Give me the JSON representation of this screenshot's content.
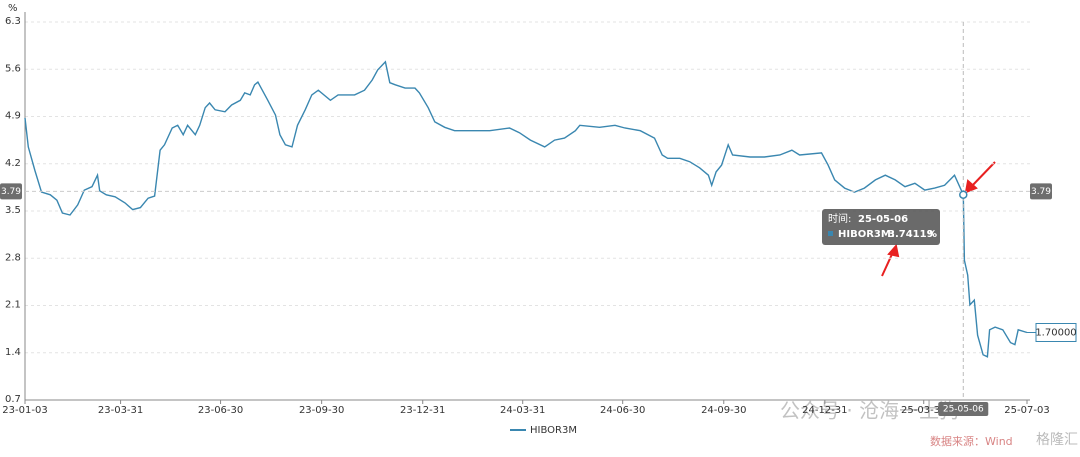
{
  "chart_data": {
    "type": "line",
    "y_unit": "%",
    "x": [
      "23-01-03",
      "23-01-06",
      "23-01-12",
      "23-01-18",
      "23-01-26",
      "23-02-01",
      "23-02-06",
      "23-02-13",
      "23-02-20",
      "23-02-26",
      "23-03-05",
      "23-03-10",
      "23-03-12",
      "23-03-18",
      "23-03-26",
      "23-04-04",
      "23-04-11",
      "23-04-18",
      "23-04-25",
      "23-05-01",
      "23-05-06",
      "23-05-10",
      "23-05-17",
      "23-05-22",
      "23-05-27",
      "23-05-31",
      "23-06-07",
      "23-06-11",
      "23-06-16",
      "23-06-20",
      "23-06-25",
      "23-07-04",
      "23-07-10",
      "23-07-18",
      "23-07-22",
      "23-07-27",
      "23-07-31",
      "23-08-03",
      "23-08-07",
      "23-08-12",
      "23-08-19",
      "23-08-23",
      "23-08-28",
      "23-09-03",
      "23-09-08",
      "23-09-15",
      "23-09-21",
      "23-09-27",
      "23-10-08",
      "23-10-15",
      "23-10-30",
      "23-11-08",
      "23-11-15",
      "23-11-20",
      "23-11-27",
      "23-12-01",
      "23-12-06",
      "23-12-15",
      "23-12-24",
      "23-12-28",
      "24-01-05",
      "24-01-11",
      "24-01-20",
      "24-01-29",
      "24-02-12",
      "24-03-01",
      "24-03-19",
      "24-03-28",
      "24-04-07",
      "24-04-20",
      "24-04-29",
      "24-05-08",
      "24-05-18",
      "24-05-22",
      "24-06-09",
      "24-06-23",
      "24-07-02",
      "24-07-16",
      "24-07-29",
      "24-08-05",
      "24-08-10",
      "24-08-21",
      "24-08-30",
      "24-09-08",
      "24-09-16",
      "24-09-19",
      "24-09-23",
      "24-09-28",
      "24-10-04",
      "24-10-08",
      "24-10-24",
      "24-11-06",
      "24-11-20",
      "24-12-01",
      "24-12-08",
      "24-12-28",
      "25-01-03",
      "25-01-09",
      "25-01-18",
      "25-01-27",
      "25-02-05",
      "25-02-15",
      "25-02-24",
      "25-03-05",
      "25-03-14",
      "25-03-23",
      "25-04-01",
      "25-04-10",
      "25-04-19",
      "25-04-28",
      "25-05-06",
      "25-05-07",
      "25-05-10",
      "25-05-12",
      "25-05-16",
      "25-05-19",
      "25-05-24",
      "25-05-28",
      "25-05-30",
      "25-06-04",
      "25-06-11",
      "25-06-18",
      "25-06-22",
      "25-06-25",
      "25-07-03"
    ],
    "series": [
      {
        "name": "HIBOR3M",
        "color": "#3a87b0",
        "values": [
          4.88,
          4.45,
          4.1,
          3.78,
          3.74,
          3.66,
          3.47,
          3.44,
          3.59,
          3.81,
          3.86,
          4.03,
          3.8,
          3.74,
          3.71,
          3.62,
          3.52,
          3.55,
          3.69,
          3.72,
          4.4,
          4.48,
          4.73,
          4.77,
          4.63,
          4.77,
          4.63,
          4.77,
          5.03,
          5.1,
          5.0,
          4.97,
          5.07,
          5.14,
          5.25,
          5.22,
          5.37,
          5.41,
          5.29,
          5.14,
          4.92,
          4.63,
          4.48,
          4.45,
          4.77,
          5.0,
          5.22,
          5.29,
          5.14,
          5.22,
          5.22,
          5.29,
          5.44,
          5.59,
          5.71,
          5.4,
          5.37,
          5.32,
          5.32,
          5.25,
          5.03,
          4.82,
          4.74,
          4.69,
          4.69,
          4.69,
          4.73,
          4.66,
          4.55,
          4.45,
          4.55,
          4.58,
          4.69,
          4.77,
          4.74,
          4.77,
          4.73,
          4.69,
          4.58,
          4.33,
          4.28,
          4.28,
          4.23,
          4.14,
          4.03,
          3.88,
          4.08,
          4.18,
          4.48,
          4.33,
          4.3,
          4.3,
          4.33,
          4.4,
          4.33,
          4.36,
          4.18,
          3.96,
          3.84,
          3.78,
          3.84,
          3.96,
          4.03,
          3.96,
          3.86,
          3.91,
          3.81,
          3.84,
          3.88,
          4.03,
          3.74119,
          2.77,
          2.55,
          2.11,
          2.18,
          1.66,
          1.37,
          1.34,
          1.74,
          1.78,
          1.74,
          1.55,
          1.52,
          1.74,
          1.7
        ],
        "last_value_label": "1.70000"
      }
    ],
    "xlim": [
      "23-01-03",
      "25-07-03"
    ],
    "xticks": [
      "23-01-03",
      "23-03-31",
      "23-06-30",
      "23-09-30",
      "23-12-31",
      "24-03-31",
      "24-06-30",
      "24-09-30",
      "24-12-31",
      "25-03-31",
      "25-07-03"
    ],
    "ylim": [
      0.7,
      6.3
    ],
    "yticks": [
      0.7,
      1.4,
      2.1,
      2.8,
      3.5,
      4.2,
      4.9,
      5.6,
      6.3
    ],
    "grid": true,
    "crosshair": {
      "x": "25-05-06",
      "y": 3.79
    },
    "tooltip": {
      "time_label": "时间:",
      "date": "25-05-06",
      "series_label": "HIBOR3M:",
      "value": 3.74119,
      "unit": "%"
    },
    "watermark": {
      "account": "公众号 · 沧海一土狗",
      "source": "数据来源：Wind",
      "brand": "格隆汇"
    }
  }
}
